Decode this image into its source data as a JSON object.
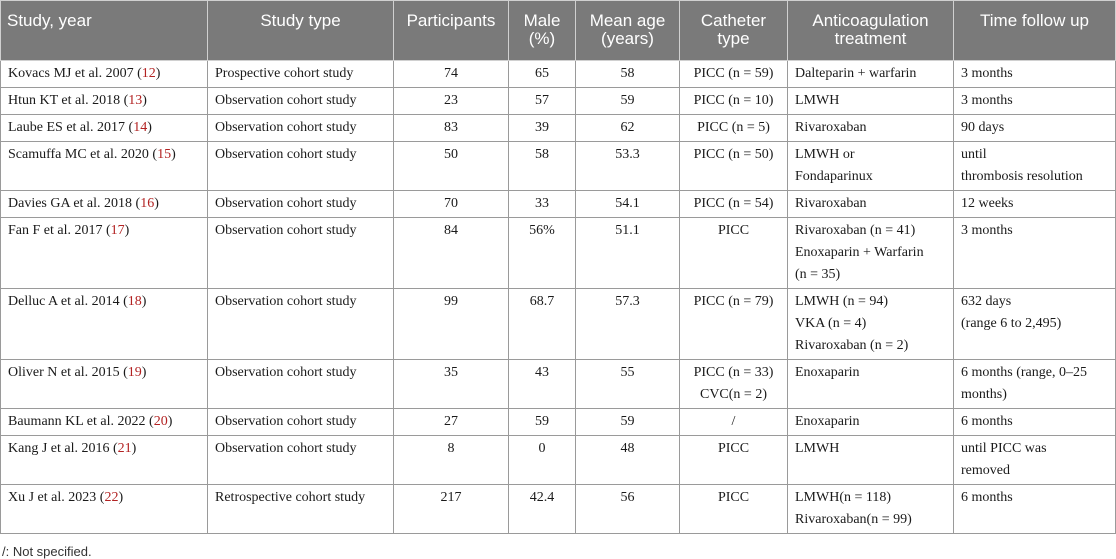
{
  "table": {
    "headers": [
      {
        "lines": [
          "Study, year"
        ],
        "align": "left"
      },
      {
        "lines": [
          "Study type"
        ],
        "align": "center"
      },
      {
        "lines": [
          "Participants"
        ],
        "align": "center"
      },
      {
        "lines": [
          "Male",
          "(%)"
        ],
        "align": "center"
      },
      {
        "lines": [
          "Mean age",
          "(years)"
        ],
        "align": "center"
      },
      {
        "lines": [
          "Catheter",
          "type"
        ],
        "align": "center"
      },
      {
        "lines": [
          "Anticoagulation",
          "treatment"
        ],
        "align": "center"
      },
      {
        "lines": [
          "Time follow up"
        ],
        "align": "center"
      }
    ],
    "rows": [
      {
        "study": "Kovacs MJ et al. 2007",
        "ref": "12",
        "type": "Prospective cohort study",
        "participants": "74",
        "male": "65",
        "age": "58",
        "catheter": [
          "PICC (n = 59)"
        ],
        "treatment": [
          "Dalteparin + warfarin"
        ],
        "followup": [
          "3 months"
        ]
      },
      {
        "study": "Htun KT et al. 2018",
        "ref": "13",
        "type": "Observation cohort study",
        "participants": "23",
        "male": "57",
        "age": "59",
        "catheter": [
          "PICC (n = 10)"
        ],
        "treatment": [
          "LMWH"
        ],
        "followup": [
          "3 months"
        ]
      },
      {
        "study": "Laube ES et al. 2017",
        "ref": "14",
        "type": "Observation cohort study",
        "participants": "83",
        "male": "39",
        "age": "62",
        "catheter": [
          "PICC (n = 5)"
        ],
        "treatment": [
          "Rivaroxaban"
        ],
        "followup": [
          "90 days"
        ]
      },
      {
        "study": "Scamuffa MC et al. 2020",
        "ref": "15",
        "type": "Observation cohort study",
        "participants": "50",
        "male": "58",
        "age": "53.3",
        "catheter": [
          "PICC (n = 50)"
        ],
        "treatment": [
          "LMWH or",
          "Fondaparinux"
        ],
        "followup": [
          "until",
          "thrombosis resolution"
        ]
      },
      {
        "study": "Davies GA et al. 2018",
        "ref": "16",
        "type": "Observation cohort study",
        "participants": "70",
        "male": "33",
        "age": "54.1",
        "catheter": [
          "PICC (n = 54)"
        ],
        "treatment": [
          "Rivaroxaban"
        ],
        "followup": [
          "12 weeks"
        ]
      },
      {
        "study": "Fan F et al. 2017",
        "ref": "17",
        "type": "Observation cohort study",
        "participants": "84",
        "male": "56%",
        "age": "51.1",
        "catheter": [
          "PICC"
        ],
        "treatment": [
          "Rivaroxaban (n = 41)",
          "Enoxaparin + Warfarin",
          "(n = 35)"
        ],
        "followup": [
          "3 months"
        ]
      },
      {
        "study": "Delluc A et al. 2014",
        "ref": "18",
        "type": "Observation cohort study",
        "participants": "99",
        "male": "68.7",
        "age": "57.3",
        "catheter": [
          "PICC (n = 79)"
        ],
        "treatment": [
          "LMWH (n = 94)",
          "VKA (n = 4)",
          "Rivaroxaban (n = 2)"
        ],
        "followup": [
          "632 days",
          "(range 6 to 2,495)"
        ]
      },
      {
        "study": "Oliver N et al. 2015",
        "ref": "19",
        "type": "Observation cohort study",
        "participants": "35",
        "male": "43",
        "age": "55",
        "catheter": [
          "PICC (n = 33)",
          "CVC(n = 2)"
        ],
        "treatment": [
          "Enoxaparin"
        ],
        "followup": [
          "6 months (range, 0–25",
          "months)"
        ]
      },
      {
        "study": "Baumann KL et al. 2022",
        "ref": "20",
        "type": "Observation cohort study",
        "participants": "27",
        "male": "59",
        "age": "59",
        "catheter": [
          "/"
        ],
        "treatment": [
          "Enoxaparin"
        ],
        "followup": [
          "6 months"
        ]
      },
      {
        "study": "Kang J et al. 2016",
        "ref": "21",
        "type": "Observation cohort study",
        "participants": "8",
        "male": "0",
        "age": "48",
        "catheter": [
          "PICC"
        ],
        "treatment": [
          "LMWH"
        ],
        "followup": [
          "until PICC was",
          "removed"
        ]
      },
      {
        "study": "Xu J et al. 2023",
        "ref": "22",
        "type": "Retrospective cohort study",
        "participants": "217",
        "male": "42.4",
        "age": "56",
        "catheter": [
          "PICC"
        ],
        "treatment": [
          "LMWH(n = 118)",
          "Rivaroxaban(n = 99)"
        ],
        "followup": [
          "6 months"
        ]
      }
    ]
  },
  "footnote": "/: Not specified.",
  "colors": {
    "header_bg": "#7a7a7a",
    "header_text": "#ffffff",
    "ref_link": "#b22222",
    "border": "#9a9a9a"
  }
}
